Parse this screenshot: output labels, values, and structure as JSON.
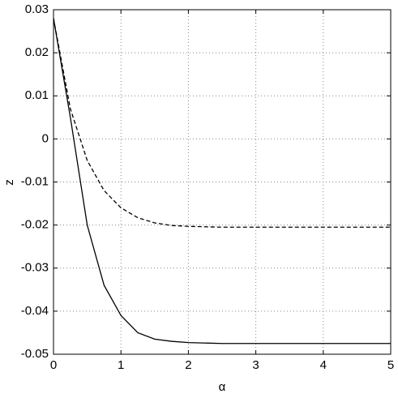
{
  "chart_data": {
    "type": "line",
    "xlabel": "α",
    "ylabel": "z",
    "x": [
      0,
      0.25,
      0.5,
      0.75,
      1,
      1.25,
      1.5,
      1.75,
      2,
      2.5,
      3,
      3.5,
      4,
      4.5,
      5
    ],
    "series": [
      {
        "color": "#000000",
        "style": "solid",
        "values": [
          0.028,
          0.005,
          -0.02,
          -0.034,
          -0.041,
          -0.045,
          -0.0465,
          -0.047,
          -0.0473,
          -0.0475,
          -0.0475,
          -0.0475,
          -0.0475,
          -0.0475,
          -0.0475
        ]
      },
      {
        "color": "#000000",
        "style": "dashed",
        "values": [
          0.028,
          0.007,
          -0.005,
          -0.012,
          -0.016,
          -0.0183,
          -0.0195,
          -0.0201,
          -0.0203,
          -0.0205,
          -0.0205,
          -0.0205,
          -0.0205,
          -0.0205,
          -0.0205
        ]
      }
    ],
    "xlim": [
      0,
      5
    ],
    "xticks": [
      0,
      1,
      2,
      3,
      4,
      5
    ],
    "ylim": [
      -0.05,
      0.03
    ],
    "yticks": [
      -0.05,
      -0.04,
      -0.03,
      -0.02,
      -0.01,
      0,
      0.01,
      0.02,
      0.03
    ],
    "grid": true
  }
}
